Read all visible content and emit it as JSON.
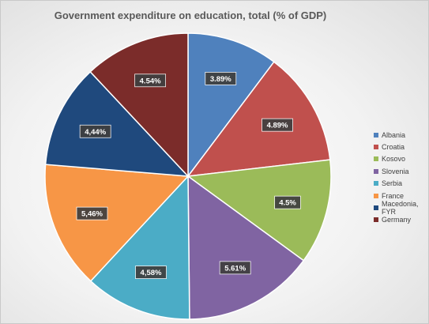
{
  "chart_data": {
    "type": "pie",
    "title": "Government expenditure on education, total (% of GDP)",
    "categories": [
      "Albania",
      "Croatia",
      "Kosovo",
      "Slovenia",
      "Serbia",
      "France",
      "Macedonia, FYR",
      "Germany"
    ],
    "values": [
      3.89,
      4.89,
      4.5,
      5.61,
      4.58,
      5.46,
      4.44,
      4.54
    ],
    "data_labels": [
      "3.89%",
      "4.89%",
      "4.5%",
      "5.61%",
      "4,58%",
      "5,46%",
      "4,44%",
      "4.54%"
    ],
    "colors": [
      "#4f81bd",
      "#c0504d",
      "#9bbb59",
      "#8064a2",
      "#4bacc6",
      "#f79646",
      "#1f497d",
      "#7b2c2a"
    ],
    "legend_position": "right",
    "start_angle_deg": 0,
    "direction": "clockwise"
  }
}
